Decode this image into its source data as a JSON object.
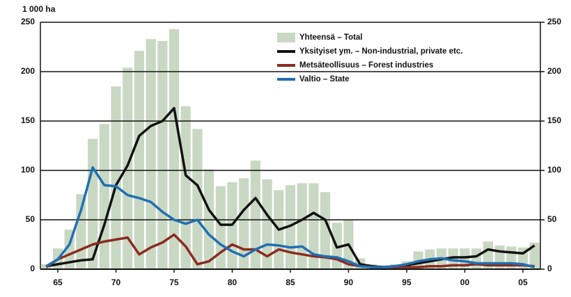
{
  "chart_data": {
    "type": "bar_line",
    "y_unit_label": "1 000 ha",
    "x": [
      1964,
      1965,
      1966,
      1967,
      1968,
      1969,
      1970,
      1971,
      1972,
      1973,
      1974,
      1975,
      1976,
      1977,
      1978,
      1979,
      1980,
      1981,
      1982,
      1983,
      1984,
      1985,
      1986,
      1987,
      1988,
      1989,
      1990,
      1991,
      1992,
      1993,
      1994,
      1995,
      1996,
      1997,
      1998,
      1999,
      2000,
      2001,
      2002,
      2003,
      2004,
      2005,
      2006
    ],
    "series": [
      {
        "name": "Yhteensä – Total",
        "kind": "bar",
        "color": "#c8d8c2",
        "values": [
          5,
          21,
          40,
          76,
          132,
          147,
          185,
          204,
          221,
          233,
          231,
          243,
          165,
          142,
          101,
          84,
          88,
          92,
          110,
          91,
          80,
          85,
          87,
          87,
          78,
          47,
          50,
          11,
          5,
          4,
          5,
          8,
          18,
          20,
          21,
          21,
          21,
          21,
          28,
          24,
          23,
          22,
          27
        ]
      },
      {
        "name": "Yksityiset ym. – Non-industrial, private etc.",
        "kind": "line",
        "color": "#111111",
        "values": [
          3,
          5,
          7,
          9,
          10,
          45,
          85,
          105,
          135,
          145,
          150,
          163,
          95,
          85,
          60,
          45,
          45,
          60,
          72,
          55,
          40,
          44,
          50,
          57,
          50,
          22,
          25,
          5,
          3,
          2,
          3,
          4,
          6,
          8,
          10,
          12,
          12,
          13,
          20,
          18,
          17,
          16,
          24
        ]
      },
      {
        "name": "Metsäteollisuus – Forest industries",
        "kind": "line",
        "color": "#8b2a1f",
        "values": [
          2,
          10,
          15,
          20,
          25,
          28,
          30,
          32,
          15,
          22,
          27,
          35,
          23,
          5,
          8,
          17,
          25,
          20,
          20,
          13,
          20,
          17,
          15,
          13,
          12,
          10,
          5,
          3,
          2,
          2,
          2,
          2,
          2,
          3,
          3,
          4,
          4,
          5,
          4,
          4,
          4,
          4,
          3
        ]
      },
      {
        "name": "Valtio – State",
        "kind": "line",
        "color": "#1f6fb4",
        "values": [
          3,
          10,
          25,
          60,
          103,
          85,
          84,
          75,
          72,
          68,
          58,
          50,
          46,
          50,
          35,
          25,
          18,
          13,
          20,
          25,
          24,
          22,
          23,
          15,
          13,
          12,
          8,
          3,
          2,
          2,
          3,
          5,
          8,
          10,
          11,
          9,
          8,
          6,
          6,
          6,
          6,
          5,
          2
        ]
      }
    ],
    "xlim": [
      1963.5,
      2006.5
    ],
    "xticks": [
      {
        "value": 1965,
        "label": "65"
      },
      {
        "value": 1970,
        "label": "70"
      },
      {
        "value": 1975,
        "label": "75"
      },
      {
        "value": 1980,
        "label": "80"
      },
      {
        "value": 1985,
        "label": "85"
      },
      {
        "value": 1990,
        "label": "90"
      },
      {
        "value": 1995,
        "label": "95"
      },
      {
        "value": 2000,
        "label": "00"
      },
      {
        "value": 2005,
        "label": "05"
      }
    ],
    "ylim": [
      0,
      250
    ],
    "yticks": [
      0,
      50,
      100,
      150,
      200,
      250
    ],
    "y2lim": [
      0,
      250
    ],
    "y2ticks": [
      0,
      50,
      100,
      150,
      200,
      250
    ],
    "grid": true
  }
}
